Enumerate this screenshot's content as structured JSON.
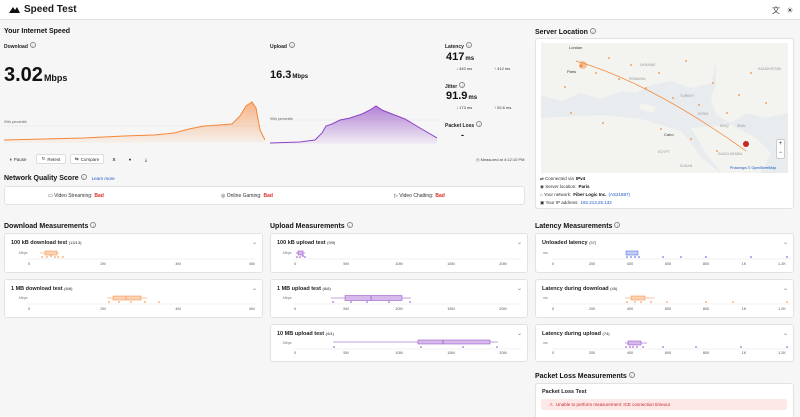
{
  "app": {
    "title": "Speed Test"
  },
  "speed": {
    "section_title": "Your Internet Speed",
    "download": {
      "label": "Download",
      "value": "3.02",
      "unit": "Mbps",
      "percentile": "90th percentile"
    },
    "upload": {
      "label": "Upload",
      "value": "16.3",
      "unit": "Mbps",
      "percentile": "90th percentile"
    },
    "latency": {
      "label": "Latency",
      "value": "417",
      "unit": "ms",
      "down": "440 ms",
      "up": "412 ms"
    },
    "jitter": {
      "label": "Jitter",
      "value": "91.9",
      "unit": "ms",
      "down": "173 ms",
      "up": "92.6 ms"
    },
    "packet_loss": {
      "label": "Packet Loss",
      "value": "-"
    },
    "measured_at": "Measured at 4:12:10 PM",
    "buttons": {
      "pause": "Pause",
      "retest": "Retest",
      "compare": "Compare"
    }
  },
  "quality": {
    "title": "Network Quality Score",
    "learn_more": "Learn more",
    "items": [
      {
        "label": "Video Streaming:",
        "status": "Bad"
      },
      {
        "label": "Online Gaming:",
        "status": "Bad"
      },
      {
        "label": "Video Chatting:",
        "status": "Bad"
      }
    ]
  },
  "download_measurements": {
    "title": "Download Measurements",
    "cards": [
      {
        "title": "100 kB download test",
        "count": "(13/13)",
        "unit": "Mbps",
        "ticks": [
          "0",
          "2M",
          "4M",
          "6M"
        ]
      },
      {
        "title": "1 MB download test",
        "count": "(8/8)",
        "unit": "Mbps",
        "ticks": [
          "0",
          "2M",
          "4M",
          "6M"
        ]
      }
    ]
  },
  "upload_measurements": {
    "title": "Upload Measurements",
    "cards": [
      {
        "title": "100 kB upload test",
        "count": "(9/9)",
        "unit": "Mbps",
        "ticks": [
          "0",
          "5M",
          "10M",
          "15M",
          "20M"
        ]
      },
      {
        "title": "1 MB upload test",
        "count": "(8/8)",
        "unit": "Mbps",
        "ticks": [
          "0",
          "5M",
          "10M",
          "15M",
          "20M"
        ]
      },
      {
        "title": "10 MB upload test",
        "count": "(4/4)",
        "unit": "Mbps",
        "ticks": [
          "0",
          "5M",
          "10M",
          "15M",
          "20M"
        ]
      }
    ]
  },
  "latency_measurements": {
    "title": "Latency Measurements",
    "cards": [
      {
        "title": "Unloaded latency",
        "count": "(37)",
        "unit": "ms",
        "ticks": [
          "0",
          "200",
          "400",
          "600",
          "800",
          "1K",
          "1.2K"
        ]
      },
      {
        "title": "Latency during download",
        "count": "(45)",
        "unit": "ms",
        "ticks": [
          "0",
          "200",
          "400",
          "600",
          "800",
          "1K",
          "1.2K"
        ]
      },
      {
        "title": "Latency during upload",
        "count": "(74)",
        "unit": "ms",
        "ticks": [
          "0",
          "200",
          "400",
          "600",
          "800",
          "1K",
          "1.2K"
        ]
      }
    ]
  },
  "server": {
    "title": "Server Location",
    "map_labels": [
      "London",
      "Paris",
      "Cairo",
      "UKRAINE",
      "ROMANIA",
      "TURKEY",
      "SYRIA",
      "IRAQ",
      "IRAN",
      "SAUDI ARABIA",
      "EGYPT",
      "SUDAN",
      "KAZAKHSTAN"
    ],
    "attribution": "Protomaps © OpenStreetMap",
    "connected_via_label": "Connected via",
    "connected_via": "IPv4",
    "location_label": "Server location:",
    "location": "Paris",
    "network_label": "Your network:",
    "network": "Fiber Logic Inc.",
    "asn": "(AS21887)",
    "ip_label": "Your IP address:",
    "ip": "192.213.25.132"
  },
  "packet_loss": {
    "title": "Packet Loss Measurements",
    "card_title": "Packet Loss Test",
    "error": "Unable to perform measurement: ICE connection timeout"
  },
  "colors": {
    "download": "#f5873a",
    "upload": "#8e44c4",
    "latency": "#3b5bdb",
    "bad": "#d93025"
  }
}
